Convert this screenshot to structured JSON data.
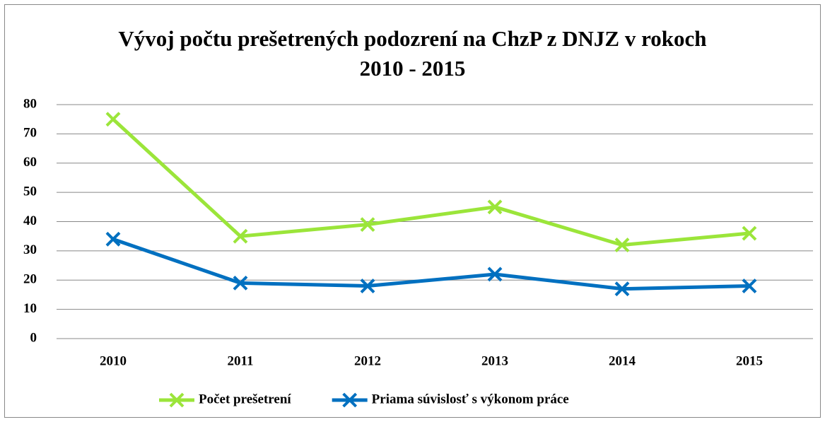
{
  "chart_data": {
    "type": "line",
    "title": "Vývoj počtu prešetrených podozrení na ChzP z DNJZ v rokoch 2010 - 2015",
    "categories": [
      "2010",
      "2011",
      "2012",
      "2013",
      "2014",
      "2015"
    ],
    "series": [
      {
        "name": "Počet prešetrení",
        "color": "#9be53a",
        "values": [
          75,
          35,
          39,
          45,
          32,
          36
        ]
      },
      {
        "name": "Priama súvislosť s výkonom práce",
        "color": "#0070c0",
        "values": [
          34,
          19,
          18,
          22,
          17,
          18
        ]
      }
    ],
    "ylim": [
      0,
      80
    ],
    "yticks": [
      0,
      10,
      20,
      30,
      40,
      50,
      60,
      70,
      80
    ],
    "grid": true,
    "legend": "bottom"
  }
}
